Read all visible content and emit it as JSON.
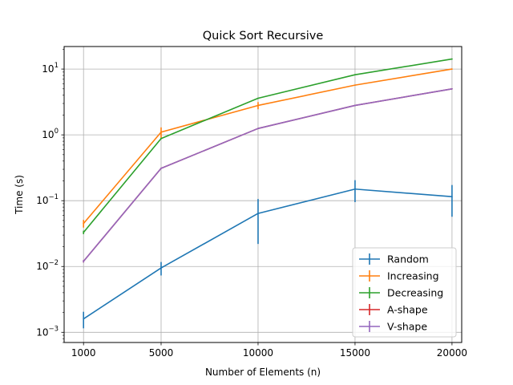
{
  "chart_data": {
    "type": "line",
    "title": "Quick Sort Recursive",
    "xlabel": "Number of Elements (n)",
    "ylabel": "Time (s)",
    "yscale": "log",
    "ylim": [
      0.0007,
      22
    ],
    "xlim": [
      -0.5,
      20500
    ],
    "grid": true,
    "legend_position": "lower-right",
    "x_ticks": [
      {
        "value": 1000,
        "label": "1000"
      },
      {
        "value": 5000,
        "label": "5000"
      },
      {
        "value": 10000,
        "label": "10000"
      },
      {
        "value": 15000,
        "label": "15000"
      },
      {
        "value": 20000,
        "label": "20000"
      }
    ],
    "y_ticks": [
      {
        "value": 0.001,
        "base": "10",
        "exp": "−3"
      },
      {
        "value": 0.01,
        "base": "10",
        "exp": "−2"
      },
      {
        "value": 0.1,
        "base": "10",
        "exp": "−1"
      },
      {
        "value": 1,
        "base": "10",
        "exp": "0"
      },
      {
        "value": 10,
        "base": "10",
        "exp": "1"
      }
    ],
    "x": [
      1000,
      5000,
      10000,
      15000,
      20000
    ],
    "series": [
      {
        "name": "Random",
        "color": "#1f77b4",
        "values": [
          0.0016,
          0.0095,
          0.064,
          0.15,
          0.115
        ],
        "errors": [
          0.00045,
          0.0022,
          0.042,
          0.055,
          0.058
        ]
      },
      {
        "name": "Increasing",
        "color": "#ff7f0e",
        "values": [
          0.045,
          1.1,
          2.8,
          5.7,
          10.0
        ],
        "errors": [
          0.006,
          0.2,
          0.35,
          0.05,
          0.05
        ]
      },
      {
        "name": "Decreasing",
        "color": "#2ca02c",
        "values": [
          0.033,
          0.88,
          3.6,
          8.2,
          14.2
        ],
        "errors": [
          0.002,
          0.02,
          0.05,
          0.05,
          0.05
        ]
      },
      {
        "name": "A-shape",
        "color": "#d62728",
        "values": [
          0.012,
          0.31,
          1.25,
          2.8,
          5.0
        ],
        "errors": [
          0.0005,
          0.005,
          0.02,
          0.02,
          0.02
        ]
      },
      {
        "name": "V-shape",
        "color": "#9467bd",
        "values": [
          0.012,
          0.31,
          1.25,
          2.8,
          5.0
        ],
        "errors": [
          0.0005,
          0.005,
          0.02,
          0.02,
          0.02
        ]
      }
    ]
  }
}
